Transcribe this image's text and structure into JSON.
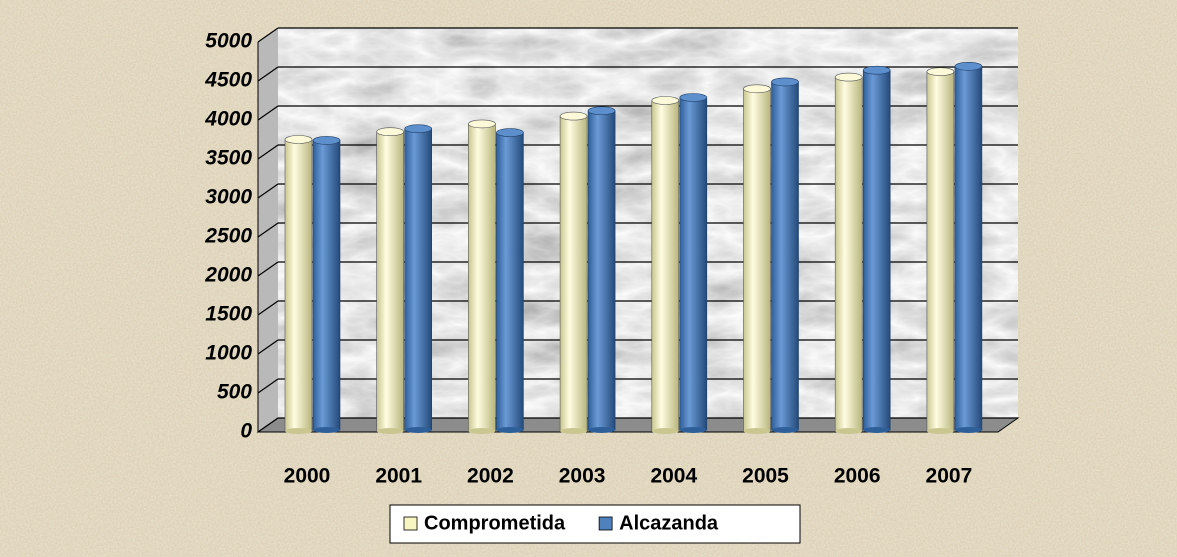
{
  "chart_data": {
    "type": "bar3d",
    "categories": [
      "2000",
      "2001",
      "2002",
      "2003",
      "2004",
      "2005",
      "2006",
      "2007"
    ],
    "series": [
      {
        "name": "Comprometida",
        "color": "#f7f5c2",
        "values": [
          3750,
          3850,
          3950,
          4050,
          4250,
          4400,
          4550,
          4620
        ]
      },
      {
        "name": "Alcazanda",
        "color": "#4f81bd",
        "values": [
          3700,
          3850,
          3800,
          4080,
          4250,
          4450,
          4600,
          4650
        ]
      }
    ],
    "ylim": [
      0,
      5000
    ],
    "yticks": [
      0,
      500,
      1000,
      1500,
      2000,
      2500,
      3000,
      3500,
      4000,
      4500,
      5000
    ],
    "grid": true,
    "legend": "bottom"
  }
}
